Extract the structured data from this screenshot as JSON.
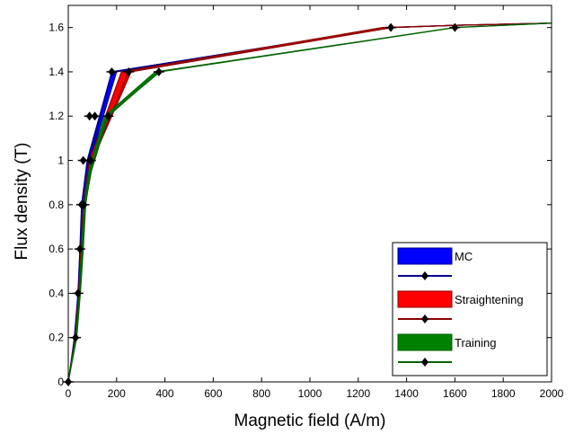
{
  "chart_data": {
    "type": "area",
    "title": "",
    "xlabel": "Magnetic field (A/m)",
    "ylabel": "Flux density (T)",
    "xlim": [
      0,
      2000
    ],
    "ylim": [
      0,
      1.7
    ],
    "xticks": [
      0,
      200,
      400,
      600,
      800,
      1000,
      1200,
      1400,
      1600,
      1800,
      2000
    ],
    "xtick_labels": [
      "0",
      "200",
      "400",
      "600",
      "800",
      "1000",
      "1200",
      "1400",
      "1600",
      "1800",
      "2000"
    ],
    "yticks": [
      0,
      0.2,
      0.4,
      0.6,
      0.8,
      1.0,
      1.2,
      1.4,
      1.6
    ],
    "ytick_labels": [
      "0",
      "0.2",
      "0.4",
      "0.6",
      "0.8",
      "1",
      "1.2",
      "1.4",
      "1.6"
    ],
    "grid": false,
    "legend_position": "bottom-right",
    "series": [
      {
        "name": "MC",
        "fill_color": "#0000ff",
        "line_color": "#00008b",
        "lower_x": [
          0,
          30,
          45,
          55,
          65,
          90,
          200,
          1340,
          1600,
          2000
        ],
        "upper_x": [
          0,
          25,
          40,
          48,
          55,
          78,
          180,
          1330,
          1600,
          2000
        ],
        "y": [
          0,
          0.2,
          0.4,
          0.6,
          0.8,
          1.0,
          1.4,
          1.6,
          1.61,
          1.62
        ],
        "marker_x": [
          0,
          28,
          42,
          52,
          62,
          85,
          180,
          1335,
          1600,
          2000
        ]
      },
      {
        "name": "Straightening",
        "fill_color": "#ff0000",
        "line_color": "#8b0000",
        "lower_x": [
          0,
          32,
          48,
          58,
          70,
          100,
          260,
          1340,
          1600,
          2000
        ],
        "upper_x": [
          0,
          28,
          43,
          52,
          62,
          88,
          220,
          1300,
          1600,
          2000
        ],
        "y": [
          0,
          0.2,
          0.4,
          0.6,
          0.8,
          1.0,
          1.4,
          1.6,
          1.61,
          1.62
        ],
        "marker_x": [
          0,
          30,
          45,
          55,
          65,
          100,
          250,
          1335,
          1600,
          2000
        ]
      },
      {
        "name": "Training",
        "fill_color": "#008000",
        "line_color": "#006400",
        "lower_x": [
          0,
          35,
          50,
          62,
          72,
          92,
          160,
          380,
          1600,
          2000
        ],
        "upper_x": [
          0,
          30,
          45,
          55,
          65,
          85,
          150,
          360,
          1600,
          2000
        ],
        "y": [
          0,
          0.2,
          0.4,
          0.6,
          0.8,
          0.95,
          1.2,
          1.4,
          1.6,
          1.62
        ],
        "marker_x": [
          0,
          32,
          48,
          58,
          70,
          95,
          165,
          375,
          1600,
          2000
        ]
      }
    ],
    "marker_points": [
      {
        "x": 0,
        "y": 0
      },
      {
        "x": 30,
        "y": 0.2
      },
      {
        "x": 40,
        "y": 0.4
      },
      {
        "x": 48,
        "y": 0.6
      },
      {
        "x": 55,
        "y": 0.8
      },
      {
        "x": 65,
        "y": 0.8
      },
      {
        "x": 62,
        "y": 1.0
      },
      {
        "x": 92,
        "y": 1.0
      },
      {
        "x": 88,
        "y": 1.2
      },
      {
        "x": 110,
        "y": 1.2
      },
      {
        "x": 165,
        "y": 1.2
      },
      {
        "x": 180,
        "y": 1.4
      },
      {
        "x": 250,
        "y": 1.4
      },
      {
        "x": 375,
        "y": 1.4
      },
      {
        "x": 1335,
        "y": 1.6
      },
      {
        "x": 1600,
        "y": 1.6
      }
    ]
  }
}
